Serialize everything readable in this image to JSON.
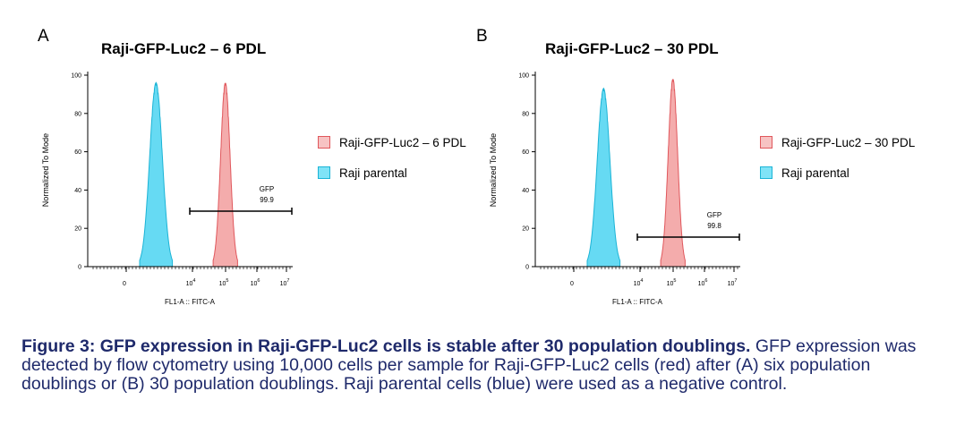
{
  "colors": {
    "red_fill": "#f3a3a3",
    "red_stroke": "#e0575c",
    "blue_fill": "#55d6f2",
    "blue_stroke": "#1cb4d6",
    "caption": "#1f2a6b"
  },
  "chart_data": [
    {
      "type": "area",
      "panel_label": "A",
      "title": "Raji-GFP-Luc2 – 6 PDL",
      "xlabel": "FL1-A :: FITC-A",
      "ylabel": "Normalized To Mode",
      "xscale": "biexponential",
      "yticks": [
        "0",
        "20",
        "40",
        "60",
        "80",
        "100"
      ],
      "xticks": [
        {
          "base": "0",
          "exp": ""
        },
        {
          "base": "10",
          "exp": "4"
        },
        {
          "base": "10",
          "exp": "5"
        },
        {
          "base": "10",
          "exp": "6"
        },
        {
          "base": "10",
          "exp": "7"
        }
      ],
      "ylim": [
        0,
        100
      ],
      "series": [
        {
          "name": "Raji-GFP-Luc2 – 6 PDL",
          "color": "red",
          "peak_x_log10": 5.05,
          "peak_y": 96
        },
        {
          "name": "Raji parental",
          "color": "blue",
          "peak_x_log10": 2.9,
          "peak_y": 96
        }
      ],
      "gate": {
        "name": "GFP",
        "value": "99.9",
        "x_start_log10": 3.9,
        "x_end_log10": 7.2
      },
      "legend": "right"
    },
    {
      "type": "area",
      "panel_label": "B",
      "title": "Raji-GFP-Luc2 – 30 PDL",
      "xlabel": "FL1-A :: FITC-A",
      "ylabel": "Normalized To Mode",
      "xscale": "biexponential",
      "yticks": [
        "0",
        "20",
        "40",
        "60",
        "80",
        "100"
      ],
      "xticks": [
        {
          "base": "0",
          "exp": ""
        },
        {
          "base": "10",
          "exp": "4"
        },
        {
          "base": "10",
          "exp": "5"
        },
        {
          "base": "10",
          "exp": "6"
        },
        {
          "base": "10",
          "exp": "7"
        }
      ],
      "ylim": [
        0,
        100
      ],
      "series": [
        {
          "name": "Raji-GFP-Luc2 – 30 PDL",
          "color": "red",
          "peak_x_log10": 5.05,
          "peak_y": 98
        },
        {
          "name": "Raji parental",
          "color": "blue",
          "peak_x_log10": 2.9,
          "peak_y": 93
        }
      ],
      "gate": {
        "name": "GFP",
        "value": "99.8",
        "x_start_log10": 3.9,
        "x_end_log10": 7.2
      },
      "legend": "right"
    }
  ],
  "caption": {
    "bold": "Figure 3: GFP expression in Raji-GFP-Luc2 cells is stable after 30 population doublings.",
    "text": " GFP expression was detected by flow cytometry using 10,000 cells per sample for Raji-GFP-Luc2 cells (red) after (A) six population doublings or (B) 30 population doublings. Raji parental cells (blue) were used as a negative control."
  }
}
